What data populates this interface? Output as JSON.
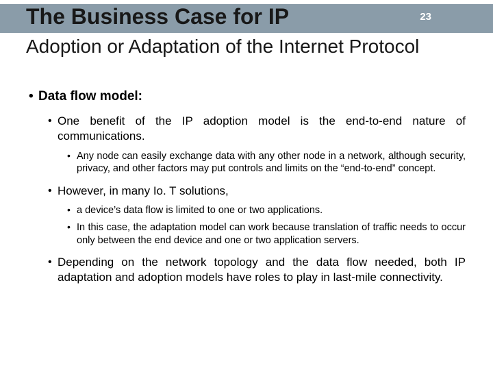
{
  "page_number": "23",
  "title_main": "The Business Case for IP",
  "title_sub": "Adoption or Adaptation of the Internet Protocol",
  "colors": {
    "titlebar_bg": "#8a9ca9",
    "pagenum_color": "#ffffff",
    "text_color": "#000000",
    "slide_bg": "#ffffff"
  },
  "heading": "Data flow model:",
  "b1": {
    "text": "One benefit of the IP adoption model is the end-to-end nature of communications.",
    "sub": [
      "Any node can easily exchange data with any other node in a network, although security, privacy, and other factors may put controls and limits on the “end-to-end” concept."
    ]
  },
  "b2": {
    "text": "However, in many Io. T solutions,",
    "sub": [
      "a device’s data flow is limited to one or two applications.",
      "In this case, the adaptation model can work because translation of traffic needs to occur only between the end device and one or two application servers."
    ]
  },
  "b3": {
    "text": "Depending on the network topology and the data flow needed, both IP adaptation and adoption models have roles to play in last-mile connectivity."
  }
}
